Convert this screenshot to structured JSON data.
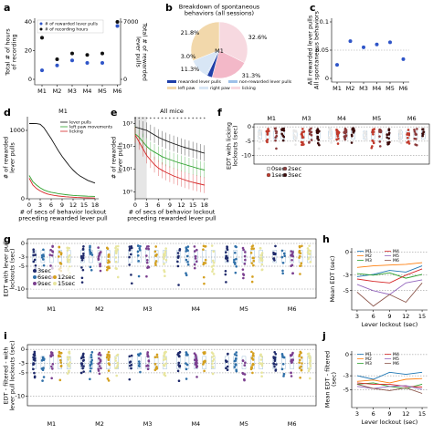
{
  "colors": {
    "lever": "#1c3d99",
    "left_paw": "#2ea22e",
    "right_paw": "#d62728",
    "licking": "#111111",
    "pie_lever": "#2f55c8",
    "pie_nonlever": "#c6dbef",
    "pie_left": "#f5deb3",
    "pie_right": "#f5c1cd",
    "pie_licking": "#f7c4d3"
  },
  "panel_labels": [
    "a",
    "b",
    "c",
    "d",
    "e",
    "f",
    "g",
    "h",
    "i",
    "j"
  ],
  "chart_data": [
    {
      "id": "a",
      "type": "scatter",
      "legend": [
        "# of rewarded lever pulls",
        "# of recording hours"
      ],
      "ylabel_left": "Total # of hours\nof recording",
      "ylabel_right": "Total # of rewarded\nlever pulls",
      "categories": [
        "M1",
        "M2",
        "M3",
        "M4",
        "M5",
        "M6"
      ],
      "yticks_left": [
        "40",
        "20",
        "0"
      ],
      "yticks_right": [
        "7000",
        "0"
      ],
      "ylim_left": [
        0,
        40
      ],
      "ylim_right": [
        0,
        7000
      ],
      "series": [
        {
          "name": "# of recording hours",
          "values": [
            29,
            14,
            18,
            17,
            18,
            40
          ]
        },
        {
          "name": "# of rewarded lever pulls",
          "values": [
            1100,
            1700,
            2300,
            2000,
            2000,
            6500
          ]
        }
      ]
    },
    {
      "id": "b",
      "type": "pie",
      "title": "Breakdown of spontaneous\nbehaviors (all sessions)",
      "center_label": "M1",
      "slices": [
        {
          "label": "rewarded lever pulls",
          "value": 3.0
        },
        {
          "label": "non-rewarded lever pulls",
          "value": 0.6
        },
        {
          "label": "left paw",
          "value": 11.3
        },
        {
          "label": "right paw",
          "value": 31.3
        },
        {
          "label": "licking",
          "value": 32.6
        },
        {
          "label": "",
          "value": 21.8
        }
      ],
      "slice_texts": [
        "21.8%",
        "32.6%",
        "3.0%",
        "11.3%",
        "31.3%"
      ]
    },
    {
      "id": "c",
      "type": "scatter",
      "ylabel": "All rewarded lever pulls\nAll spontaneous behaviors",
      "categories": [
        "M1",
        "M2",
        "M3",
        "M4",
        "M5",
        "M6"
      ],
      "yticks": [
        "0.1",
        "0.05",
        "0"
      ],
      "ylim": [
        0,
        0.1
      ],
      "values": [
        0.024,
        0.066,
        0.055,
        0.06,
        0.064,
        0.034
      ]
    },
    {
      "id": "d",
      "type": "line",
      "title": "M1",
      "ylabel": "# of rewarded\nlever pulls",
      "xlabel": "# of secs of behavior lockout\npreceding rewarded lever pull",
      "xticks": [
        "0",
        "3",
        "6",
        "9",
        "12",
        "15",
        "18"
      ],
      "yticks": [
        "1000",
        "0"
      ],
      "x": [
        0,
        1,
        2,
        3,
        4,
        5,
        6,
        7,
        8,
        9,
        10,
        11,
        12,
        13,
        14,
        15,
        16,
        17,
        18
      ],
      "xlim": [
        0,
        19
      ],
      "ylim": [
        0,
        1200
      ],
      "legend": [
        "lever pulls",
        "left paw movements",
        "licking"
      ],
      "series": [
        {
          "name": "lever pulls",
          "values": [
            1100,
            1100,
            1098,
            1090,
            1040,
            960,
            880,
            790,
            700,
            620,
            550,
            480,
            420,
            370,
            330,
            300,
            270,
            250,
            230
          ]
        },
        {
          "name": "left paw movements",
          "values": [
            340,
            250,
            200,
            160,
            130,
            110,
            95,
            85,
            75,
            68,
            60,
            55,
            50,
            46,
            42,
            40,
            38,
            36,
            34
          ]
        },
        {
          "name": "licking",
          "values": [
            300,
            200,
            150,
            115,
            90,
            70,
            58,
            48,
            40,
            34,
            29,
            25,
            22,
            19,
            17,
            15,
            13,
            12,
            11
          ]
        }
      ]
    },
    {
      "id": "e",
      "type": "line",
      "title": "All mice",
      "ylabel": "# of rewarded\nlever pulls",
      "xlabel": "# of secs of behavior lockout\npreceding rewarded lever pull",
      "xticks": [
        "0",
        "3",
        "6",
        "9",
        "12",
        "15",
        "18"
      ],
      "yticks": [
        "10³",
        "10²",
        "10¹",
        "10⁰"
      ],
      "x": [
        0,
        1,
        2,
        3,
        4,
        5,
        6,
        7,
        8,
        9,
        10,
        11,
        12,
        13,
        14,
        15,
        16,
        17,
        18
      ],
      "xlim": [
        0,
        19
      ],
      "ylim_log10": [
        -0.3,
        3.3
      ],
      "series": [
        {
          "name": "lever pulls",
          "log10_values": [
            2.85,
            2.8,
            2.75,
            2.7,
            2.6,
            2.5,
            2.4,
            2.32,
            2.25,
            2.18,
            2.12,
            2.06,
            2.0,
            1.95,
            1.9,
            1.85,
            1.8,
            1.75,
            1.7
          ]
        },
        {
          "name": "left paw movements",
          "log10_values": [
            2.55,
            2.4,
            2.2,
            2.0,
            1.85,
            1.75,
            1.65,
            1.55,
            1.48,
            1.42,
            1.36,
            1.3,
            1.25,
            1.2,
            1.15,
            1.1,
            1.05,
            1.0,
            0.96
          ]
        },
        {
          "name": "licking",
          "log10_values": [
            2.5,
            2.2,
            1.9,
            1.6,
            1.4,
            1.2,
            1.05,
            0.95,
            0.86,
            0.78,
            0.7,
            0.64,
            0.58,
            0.52,
            0.47,
            0.42,
            0.38,
            0.34,
            0.3
          ]
        }
      ]
    },
    {
      "id": "f",
      "type": "scatter",
      "ylabel": "EDT with licking\nlockouts (sec)",
      "yticks": [
        "0",
        "-5",
        "-10"
      ],
      "ylim": [
        -13,
        1
      ],
      "mice": [
        "M1",
        "M3",
        "M4",
        "M5",
        "M6"
      ],
      "legend": [
        "0sec",
        "1sec",
        "2sec",
        "3sec"
      ]
    },
    {
      "id": "g",
      "type": "scatter",
      "ylabel": "EDT with lever pull\nlockouts (sec)",
      "yticks": [
        "0",
        "-3",
        "-5",
        "-10"
      ],
      "ylim": [
        -12,
        1
      ],
      "mice": [
        "M1",
        "M2",
        "M3",
        "M4",
        "M5",
        "M6"
      ],
      "legend": [
        "3sec",
        "6sec",
        "9sec",
        "12sec",
        "15sec"
      ]
    },
    {
      "id": "h",
      "type": "line",
      "ylabel": "Mean EDT (sec)",
      "xlabel": "Lever lockout (sec)",
      "xticks": [
        "3",
        "6",
        "9",
        "12",
        "15"
      ],
      "yticks": [
        "0",
        "-3",
        "-5"
      ],
      "x": [
        3,
        6,
        9,
        12,
        15
      ],
      "ylim": [
        -7.5,
        0.5
      ],
      "legend": [
        "M1",
        "M2",
        "M3",
        "M4",
        "M5",
        "M6"
      ],
      "series": [
        {
          "name": "M1",
          "values": [
            -3.2,
            -2.9,
            -2.4,
            -2.6,
            -1.8
          ]
        },
        {
          "name": "M2",
          "values": [
            -2.0,
            -1.8,
            -1.7,
            -1.6,
            -1.4
          ]
        },
        {
          "name": "M3",
          "values": [
            -2.8,
            -3.0,
            -2.7,
            -3.4,
            -2.9
          ]
        },
        {
          "name": "M4",
          "values": [
            -3.5,
            -3.8,
            -4.0,
            -3.0,
            -2.2
          ]
        },
        {
          "name": "M5",
          "values": [
            -4.2,
            -5.0,
            -5.5,
            -4.0,
            -3.6
          ]
        },
        {
          "name": "M6",
          "values": [
            -5.2,
            -7.0,
            -5.5,
            -6.5,
            -4.0
          ]
        }
      ]
    },
    {
      "id": "i",
      "type": "scatter",
      "ylabel": "EDT - filtered - with\nlever pull lockouts (sec)",
      "yticks": [
        "0",
        "-3",
        "-5",
        "-10"
      ],
      "ylim": [
        -12,
        1
      ],
      "mice": [
        "M1",
        "M2",
        "M3",
        "M4",
        "M5",
        "M6"
      ]
    },
    {
      "id": "j",
      "type": "line",
      "ylabel": "Mean EDT - filtered\n(sec)",
      "xlabel": "Lever lockout (sec)",
      "xticks": [
        "3",
        "6",
        "9",
        "12",
        "15"
      ],
      "yticks": [
        "0",
        "-3",
        "-5"
      ],
      "x": [
        3,
        6,
        9,
        12,
        15
      ],
      "ylim": [
        -7.5,
        0.5
      ],
      "legend": [
        "M1",
        "M2",
        "M3",
        "M4",
        "M5",
        "M6"
      ],
      "series": [
        {
          "name": "M1",
          "values": [
            -3.0,
            -3.5,
            -2.5,
            -2.8,
            -2.5
          ]
        },
        {
          "name": "M2",
          "values": [
            -3.8,
            -3.6,
            -4.0,
            -3.5,
            -3.4
          ]
        },
        {
          "name": "M3",
          "values": [
            -4.2,
            -4.0,
            -4.5,
            -4.8,
            -4.2
          ]
        },
        {
          "name": "M4",
          "values": [
            -4.0,
            -4.2,
            -4.2,
            -4.5,
            -4.6
          ]
        },
        {
          "name": "M5",
          "values": [
            -4.5,
            -4.8,
            -4.5,
            -4.4,
            -4.9
          ]
        },
        {
          "name": "M6",
          "values": [
            -4.2,
            -4.8,
            -5.1,
            -4.7,
            -5.5
          ]
        }
      ]
    }
  ]
}
